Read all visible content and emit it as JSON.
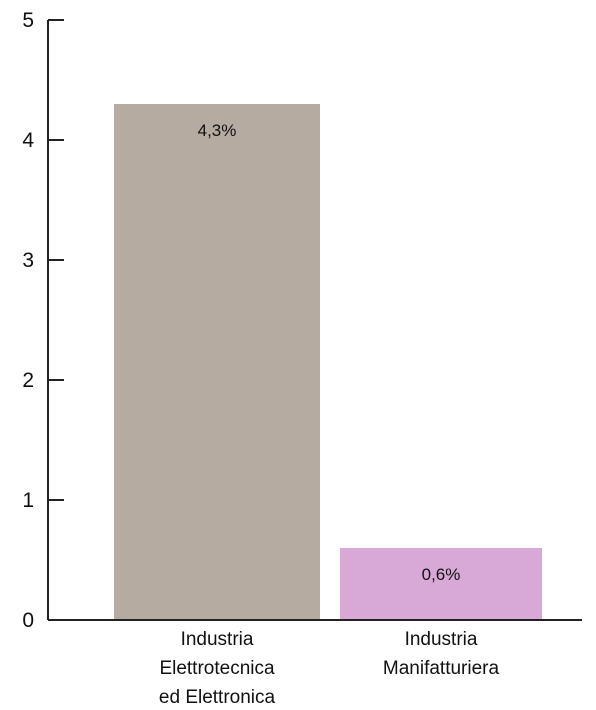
{
  "chart_data": {
    "type": "bar",
    "categories": [
      [
        "Industria",
        "Elettrotecnica",
        "ed Elettronica"
      ],
      [
        "Industria",
        "Manifatturiera"
      ]
    ],
    "values": [
      4.3,
      0.6
    ],
    "data_labels": [
      "4,3%",
      "0,6%"
    ],
    "bar_colors": [
      "#b5aba0",
      "#d8a8d6"
    ],
    "ylim": [
      0,
      5
    ],
    "yticks": [
      0,
      1,
      2,
      3,
      4,
      5
    ],
    "ytick_labels": [
      "0",
      "1",
      "2",
      "3",
      "4",
      "5"
    ],
    "title": "",
    "xlabel": "",
    "ylabel": "",
    "grid": false,
    "legend": "none"
  }
}
